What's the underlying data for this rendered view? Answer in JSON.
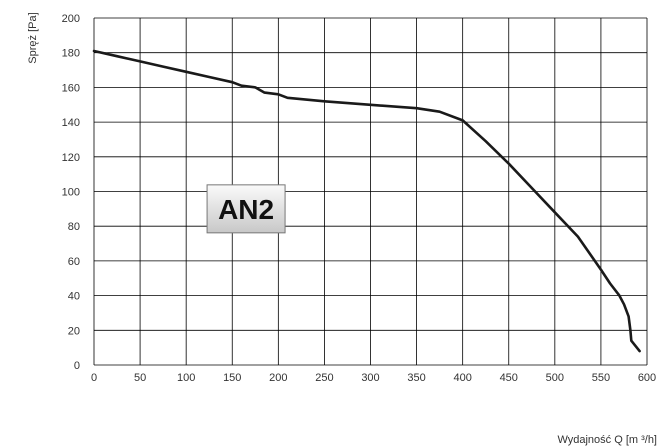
{
  "chart_data": {
    "type": "line",
    "title": "",
    "ylabel": "Spręż [Pa]",
    "xlabel": "Wydajność Q [m ³/h]",
    "xlim": [
      0,
      600
    ],
    "ylim": [
      0,
      200
    ],
    "xticks": [
      0,
      50,
      100,
      150,
      200,
      250,
      300,
      350,
      400,
      450,
      500,
      550,
      600
    ],
    "yticks": [
      0,
      20,
      40,
      60,
      80,
      100,
      120,
      140,
      160,
      180,
      200
    ],
    "grid": true,
    "annotation": {
      "label": "AN2",
      "x": 165,
      "y": 90
    },
    "series": [
      {
        "x": [
          0,
          25,
          50,
          75,
          100,
          125,
          150,
          160,
          175,
          185,
          200,
          210,
          250,
          300,
          350,
          375,
          400,
          425,
          450,
          475,
          500,
          525,
          550,
          560,
          570,
          575,
          580,
          582,
          583,
          592
        ],
        "y": [
          181,
          178,
          175,
          172,
          169,
          166,
          163,
          161,
          160,
          157,
          156,
          154,
          152,
          150,
          148,
          146,
          141,
          129,
          116,
          102,
          88,
          74,
          55,
          47,
          40,
          35,
          28,
          20,
          14,
          8
        ]
      }
    ]
  },
  "style": {
    "line_color": "#1a1a1a",
    "grid_color": "#000000",
    "badge_fill_top": "#fafafa",
    "badge_fill_bottom": "#c8c8c8"
  }
}
